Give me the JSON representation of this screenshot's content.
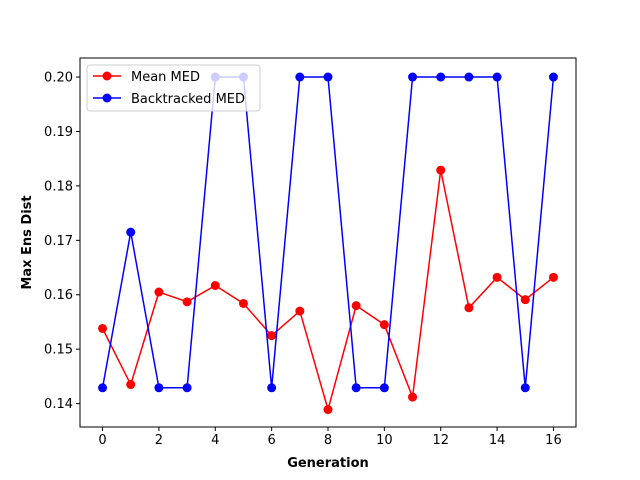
{
  "chart_data": {
    "type": "line",
    "title": "",
    "xlabel": "Generation",
    "ylabel": "Max Ens Dist",
    "xlim": [
      -0.8,
      16.8
    ],
    "ylim": [
      0.1357,
      0.2035
    ],
    "xticks": [
      0,
      2,
      4,
      6,
      8,
      10,
      12,
      14,
      16
    ],
    "yticks": [
      0.14,
      0.15,
      0.16,
      0.17,
      0.18,
      0.19,
      0.2
    ],
    "ytick_labels": [
      "0.14",
      "0.15",
      "0.16",
      "0.17",
      "0.18",
      "0.19",
      "0.20"
    ],
    "grid": false,
    "legend_position": "top-left",
    "x": [
      0,
      1,
      2,
      3,
      4,
      5,
      6,
      7,
      8,
      9,
      10,
      11,
      12,
      13,
      14,
      15,
      16
    ],
    "series": [
      {
        "name": "Mean MED",
        "color": "#ff0000",
        "marker": "circle",
        "values": [
          0.1538,
          0.1435,
          0.1605,
          0.1587,
          0.1617,
          0.1584,
          0.1525,
          0.157,
          0.1389,
          0.158,
          0.1545,
          0.1412,
          0.1829,
          0.1576,
          0.1632,
          0.1591,
          0.1632
        ]
      },
      {
        "name": "Backtracked MED",
        "color": "#0000ff",
        "marker": "circle",
        "values": [
          0.1429,
          0.1715,
          0.1429,
          0.1429,
          0.2,
          0.2,
          0.1429,
          0.2,
          0.2,
          0.1429,
          0.1429,
          0.2,
          0.2,
          0.2,
          0.2,
          0.1429,
          0.2
        ]
      }
    ]
  }
}
